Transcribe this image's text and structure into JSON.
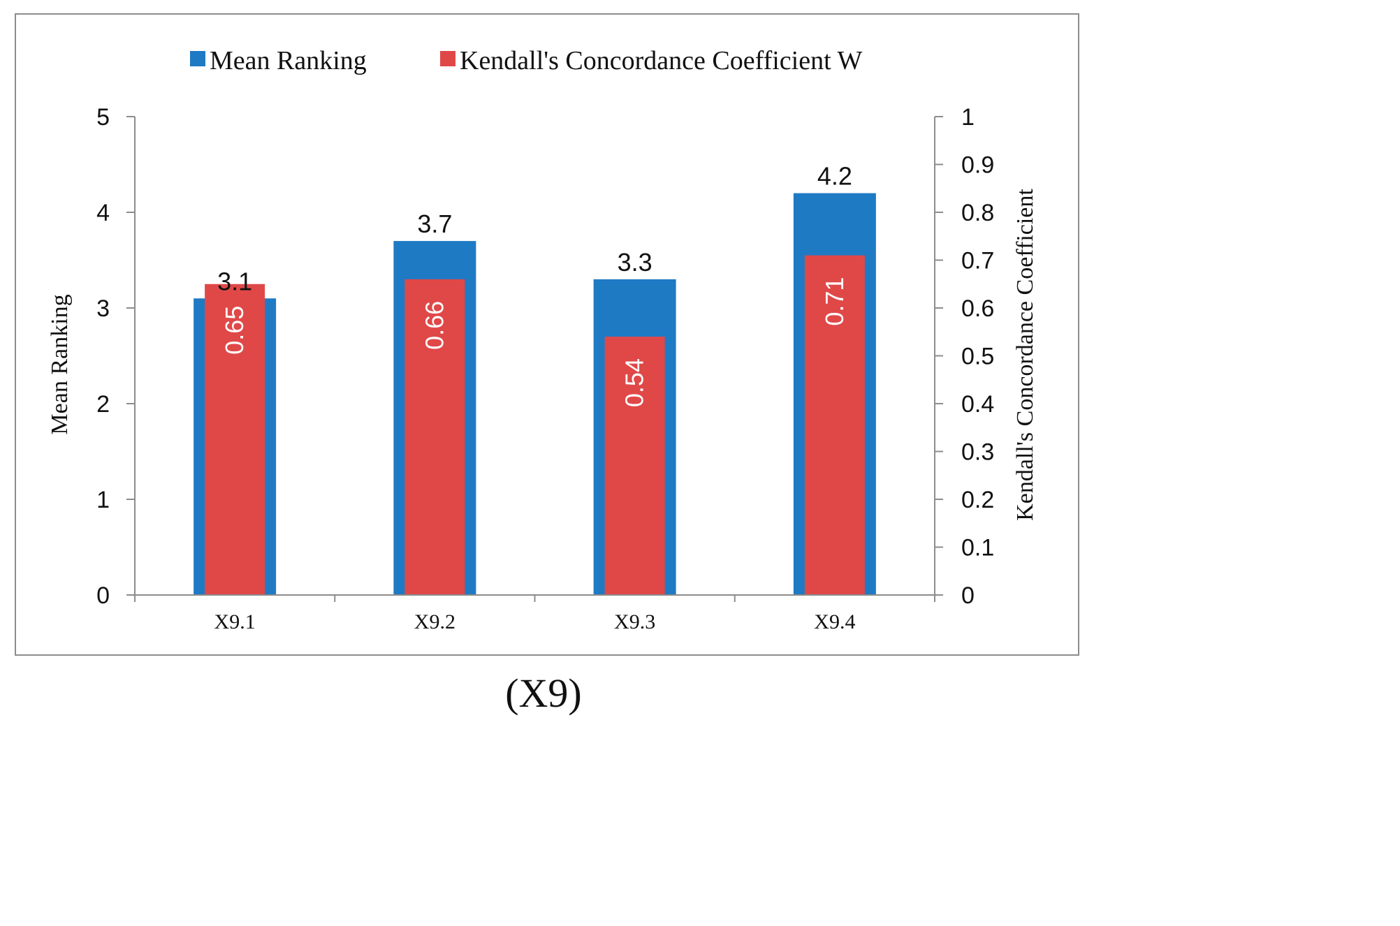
{
  "chart_data": {
    "type": "bar",
    "categories": [
      "X9.1",
      "X9.2",
      "X9.3",
      "X9.4"
    ],
    "series": [
      {
        "name": "Mean Ranking",
        "axis": "left",
        "color": "#1f7ac4",
        "values": [
          3.1,
          3.7,
          3.3,
          4.2
        ]
      },
      {
        "name": "Kendall's Concordance Coefficient W",
        "axis": "right",
        "color": "#e04848",
        "values": [
          0.65,
          0.66,
          0.54,
          0.71
        ]
      }
    ],
    "ylabel": "Mean Ranking",
    "ylabel_right": "Kendall's Concordance Coefficient",
    "ylim": [
      0,
      5
    ],
    "ylim_right": [
      0,
      1
    ],
    "yticks": [
      "0",
      "1",
      "2",
      "3",
      "4",
      "5"
    ],
    "yticks_right": [
      "0",
      "0.1",
      "0.2",
      "0.3",
      "0.4",
      "0.5",
      "0.6",
      "0.7",
      "0.8",
      "0.9",
      "1"
    ],
    "legend_position": "top",
    "grid": false
  },
  "caption": "(X9)"
}
